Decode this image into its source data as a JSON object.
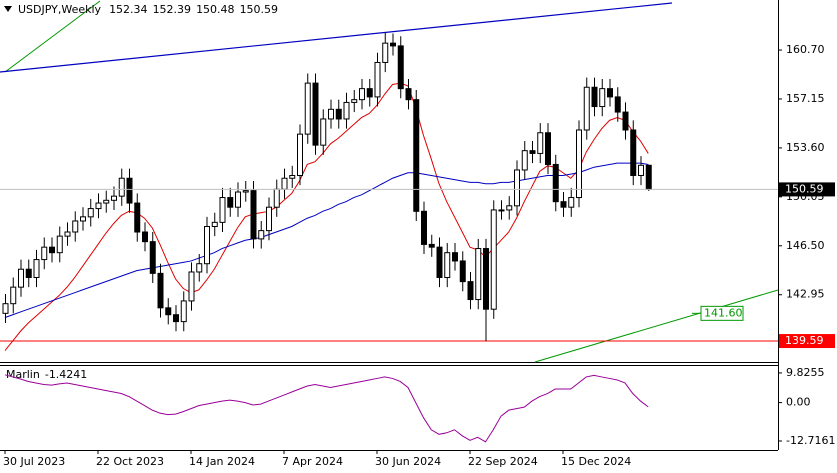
{
  "chart_data": {
    "type": "candlestick",
    "symbol": "USDJPY,Weekly",
    "categories": [
      "30 Jul 2023",
      null,
      null,
      null,
      null,
      null,
      null,
      null,
      null,
      null,
      null,
      null,
      "22 Oct 2023",
      null,
      null,
      null,
      null,
      null,
      null,
      null,
      null,
      null,
      null,
      null,
      "14 Jan 2024",
      null,
      null,
      null,
      null,
      null,
      null,
      null,
      null,
      null,
      null,
      null,
      "7 Apr 2024",
      null,
      null,
      null,
      null,
      null,
      null,
      null,
      null,
      null,
      null,
      null,
      "30 Jun 2024",
      null,
      null,
      null,
      null,
      null,
      null,
      null,
      null,
      null,
      null,
      null,
      "22 Sep 2024",
      null,
      null,
      null,
      null,
      null,
      null,
      null,
      null,
      null,
      null,
      null,
      "15 Dec 2024",
      null,
      null,
      null,
      null,
      null,
      null,
      null,
      null,
      null,
      null,
      null
    ],
    "open": [
      141.6,
      142.3,
      143.5,
      144.8,
      144.2,
      145.5,
      146.4,
      146.0,
      147.2,
      147.5,
      148.3,
      148.6,
      149.2,
      149.6,
      149.8,
      150.1,
      151.4,
      149.6,
      147.5,
      146.8,
      144.5,
      142.0,
      141.5,
      141.0,
      142.5,
      144.6,
      145.2,
      147.9,
      148.2,
      150.0,
      149.3,
      150.4,
      150.5,
      147.0,
      147.6,
      149.3,
      150.6,
      151.4,
      151.6,
      154.6,
      158.3,
      153.8,
      155.7,
      156.4,
      155.7,
      156.9,
      157.1,
      157.9,
      157.3,
      159.8,
      161.2,
      161.0,
      157.9,
      157.1,
      149.0,
      146.6,
      146.4,
      144.2,
      146.0,
      145.4,
      143.9,
      142.6,
      146.3,
      141.9,
      149.1,
      149.1,
      149.4,
      152.0,
      153.4,
      153.2,
      154.7,
      152.4,
      149.7,
      149.3,
      150.0,
      154.9,
      158.0,
      156.6,
      157.9,
      157.3,
      156.2,
      154.9,
      151.6,
      152.34
    ],
    "high": [
      143.0,
      144.2,
      145.5,
      145.5,
      146.2,
      147.1,
      147.1,
      147.9,
      148.2,
      149.0,
      149.3,
      149.9,
      150.3,
      150.5,
      150.8,
      152.1,
      152.1,
      150.3,
      148.2,
      147.5,
      145.2,
      142.7,
      142.2,
      143.2,
      145.3,
      145.9,
      148.6,
      148.9,
      150.7,
      150.7,
      151.1,
      151.2,
      151.2,
      148.3,
      150.0,
      151.3,
      152.1,
      152.3,
      155.3,
      159.0,
      159.0,
      156.4,
      157.1,
      157.1,
      157.6,
      157.8,
      158.6,
      158.6,
      160.5,
      161.95,
      161.9,
      161.7,
      158.6,
      157.8,
      149.7,
      147.3,
      147.1,
      146.7,
      146.7,
      146.1,
      144.6,
      147.0,
      147.0,
      149.8,
      149.8,
      150.1,
      152.7,
      154.1,
      154.1,
      155.4,
      155.4,
      153.1,
      150.4,
      150.7,
      155.6,
      158.7,
      158.7,
      158.6,
      158.6,
      158.0,
      156.9,
      155.6,
      153.0,
      152.39
    ],
    "low": [
      140.9,
      141.6,
      142.8,
      143.5,
      143.5,
      144.8,
      145.3,
      145.3,
      146.5,
      146.8,
      147.6,
      147.9,
      148.5,
      148.9,
      149.1,
      149.4,
      148.9,
      146.8,
      146.1,
      143.8,
      141.3,
      140.8,
      140.3,
      140.3,
      141.8,
      143.9,
      144.5,
      147.2,
      147.5,
      148.6,
      148.6,
      149.7,
      146.3,
      146.3,
      146.9,
      148.6,
      149.9,
      150.7,
      150.9,
      153.9,
      153.1,
      153.1,
      155.0,
      155.0,
      155.0,
      156.2,
      156.4,
      156.6,
      156.6,
      159.1,
      160.3,
      157.2,
      156.4,
      148.3,
      145.9,
      145.7,
      143.5,
      143.5,
      144.7,
      143.2,
      141.9,
      141.9,
      139.58,
      141.2,
      148.4,
      148.4,
      148.7,
      151.3,
      152.5,
      152.5,
      151.7,
      149.0,
      148.6,
      148.6,
      149.3,
      154.2,
      155.9,
      155.9,
      156.6,
      155.5,
      154.2,
      150.9,
      150.9,
      150.48
    ],
    "close": [
      142.3,
      143.5,
      144.8,
      144.2,
      145.5,
      146.4,
      146.0,
      147.2,
      147.5,
      148.3,
      148.6,
      149.2,
      149.6,
      149.8,
      150.1,
      151.4,
      149.6,
      147.5,
      146.8,
      144.5,
      142.0,
      141.5,
      141.0,
      142.5,
      144.6,
      145.2,
      147.9,
      148.2,
      150.0,
      149.3,
      150.4,
      150.5,
      147.0,
      147.6,
      149.3,
      150.6,
      151.4,
      151.6,
      154.6,
      158.3,
      153.8,
      155.7,
      156.4,
      155.7,
      156.9,
      157.1,
      157.9,
      157.3,
      159.8,
      161.2,
      161.0,
      157.9,
      157.1,
      149.0,
      146.6,
      146.4,
      144.2,
      146.0,
      145.4,
      143.9,
      142.6,
      146.3,
      141.9,
      149.1,
      149.1,
      149.4,
      152.0,
      153.4,
      153.2,
      154.7,
      152.4,
      149.7,
      149.3,
      150.0,
      154.9,
      158.0,
      156.6,
      157.9,
      157.3,
      156.2,
      154.9,
      151.6,
      152.34,
      150.59
    ],
    "up_color": "#ffffff",
    "down_color": "#000000",
    "ylim": [
      138.07,
      164.33
    ],
    "yticks": [
      {
        "value": 160.7,
        "label": "160.70"
      },
      157.15,
      {
        "value": 153.6,
        "label": "153.60"
      },
      150.05,
      {
        "value": 146.5,
        "label": "146.50"
      },
      142.95
    ],
    "moving_averages": [
      {
        "color": "#e00000",
        "values": [
          138.9,
          139.6,
          140.3,
          140.9,
          141.4,
          141.9,
          142.4,
          142.9,
          143.5,
          144.2,
          145.0,
          145.8,
          146.6,
          147.4,
          148.1,
          148.7,
          149.0,
          148.9,
          148.5,
          147.8,
          146.6,
          145.3,
          144.1,
          143.4,
          143.1,
          143.3,
          144.0,
          144.8,
          145.8,
          146.8,
          147.8,
          148.6,
          148.8,
          148.9,
          149.0,
          149.3,
          149.8,
          150.3,
          151.2,
          152.4,
          152.6,
          153.2,
          153.9,
          154.3,
          154.8,
          155.3,
          155.8,
          156.1,
          156.7,
          157.5,
          158.2,
          158.3,
          158.1,
          156.5,
          154.5,
          152.8,
          151.0,
          149.7,
          148.6,
          147.5,
          146.4,
          146.2,
          145.7,
          146.3,
          146.9,
          147.5,
          148.5,
          149.7,
          150.8,
          151.9,
          152.3,
          152.2,
          151.8,
          151.4,
          152.0,
          153.3,
          154.2,
          155.0,
          155.6,
          155.8,
          155.6,
          154.8,
          154.1,
          153.2
        ]
      },
      {
        "color": "#0000c0",
        "values": [
          141.3,
          141.5,
          141.7,
          141.9,
          142.1,
          142.3,
          142.5,
          142.7,
          142.9,
          143.1,
          143.3,
          143.5,
          143.7,
          143.9,
          144.1,
          144.3,
          144.5,
          144.7,
          144.8,
          144.9,
          145.0,
          145.1,
          145.2,
          145.3,
          145.4,
          145.6,
          145.8,
          146.0,
          146.3,
          146.5,
          146.7,
          146.9,
          147.0,
          147.1,
          147.3,
          147.5,
          147.7,
          147.9,
          148.2,
          148.5,
          148.7,
          149.0,
          149.2,
          149.5,
          149.7,
          150.0,
          150.2,
          150.5,
          150.8,
          151.1,
          151.4,
          151.6,
          151.8,
          151.8,
          151.7,
          151.6,
          151.5,
          151.4,
          151.3,
          151.2,
          151.1,
          151.1,
          151.0,
          151.0,
          151.1,
          151.1,
          151.2,
          151.3,
          151.4,
          151.5,
          151.6,
          151.6,
          151.6,
          151.7,
          151.8,
          152.0,
          152.2,
          152.3,
          152.4,
          152.5,
          152.5,
          152.5,
          152.5,
          152.4
        ]
      }
    ],
    "levels": [
      {
        "value": 139.59,
        "label": "139.59",
        "color": "#ff0000"
      },
      {
        "value": 141.6,
        "label": "141.60",
        "color": "#009900"
      }
    ],
    "indicator": {
      "name": "Marlin",
      "color": "#990099",
      "values": [
        9.2,
        8.5,
        7.8,
        7.0,
        6.5,
        6.0,
        5.8,
        6.2,
        6.5,
        6.0,
        5.5,
        5.0,
        4.5,
        4.0,
        3.5,
        3.0,
        2.0,
        0.5,
        -1.0,
        -2.5,
        -3.5,
        -4.0,
        -3.8,
        -3.0,
        -2.0,
        -1.0,
        -0.5,
        0.0,
        0.5,
        0.8,
        0.5,
        0.0,
        -0.8,
        -0.5,
        0.5,
        1.5,
        2.5,
        3.5,
        4.5,
        5.5,
        6.0,
        5.5,
        5.0,
        5.5,
        6.0,
        6.5,
        7.0,
        7.5,
        8.0,
        8.5,
        8.0,
        7.0,
        5.0,
        0.0,
        -5.0,
        -9.0,
        -10.5,
        -10.0,
        -9.0,
        -11.0,
        -12.5,
        -11.5,
        -13.0,
        -9.0,
        -4.5,
        -2.5,
        -2.0,
        -1.5,
        0.5,
        2.0,
        3.0,
        4.5,
        4.5,
        4.5,
        6.5,
        8.5,
        9.0,
        8.5,
        8.0,
        7.5,
        6.5,
        3.0,
        0.5,
        -1.4241
      ],
      "ylim": [
        -15.7,
        12.45
      ],
      "yticks": [
        9.8255,
        {
          "value": 0,
          "label": "0.00"
        },
        -12.7161
      ]
    }
  }
}
